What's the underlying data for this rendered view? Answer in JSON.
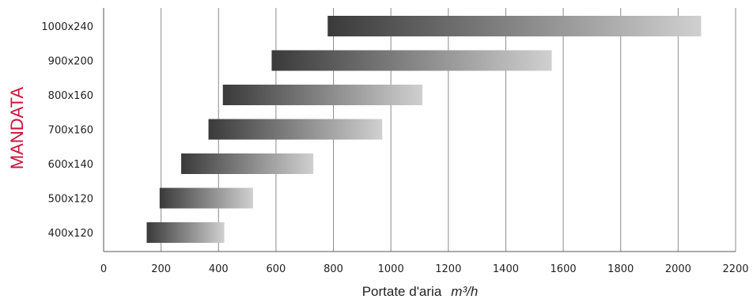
{
  "chart_data": {
    "type": "bar",
    "orientation": "horizontal",
    "style": "floating range bars with dark-to-light gradient",
    "categories": [
      "400x120",
      "500x120",
      "600x140",
      "700x160",
      "800x160",
      "900x200",
      "1000x240"
    ],
    "ranges": [
      [
        150,
        420
      ],
      [
        195,
        520
      ],
      [
        270,
        730
      ],
      [
        365,
        970
      ],
      [
        415,
        1110
      ],
      [
        585,
        1560
      ],
      [
        780,
        2080
      ]
    ],
    "xlim": [
      0,
      2200
    ],
    "xticks": [
      0,
      200,
      400,
      600,
      800,
      1000,
      1200,
      1400,
      1600,
      1800,
      2000,
      2200
    ],
    "grid": "vertical",
    "xlabel": "Portate d'aria",
    "xlabel_unit": "m³/h",
    "ylabel": "MANDATA",
    "colors": {
      "bar_start": "#3a3a3a",
      "bar_end": "#d0d0d0",
      "ylabel": "#d0103a",
      "grid": "#8c8c8c",
      "axis": "#555555"
    }
  }
}
